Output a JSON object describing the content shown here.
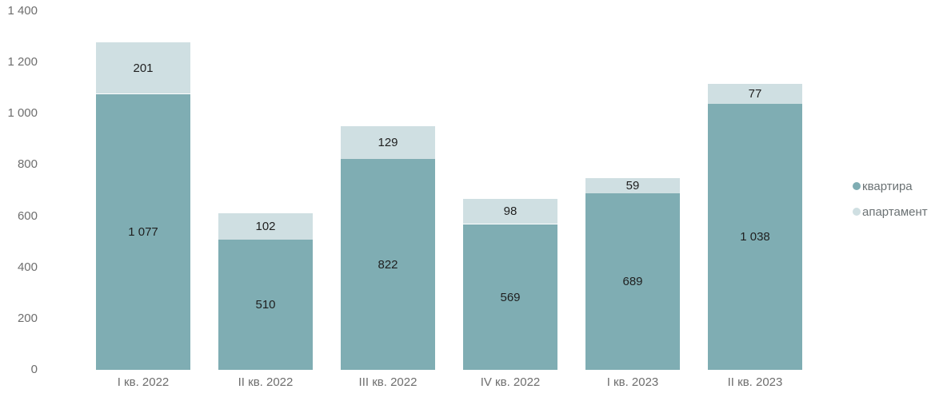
{
  "chart_data": {
    "type": "bar",
    "stacked": true,
    "categories": [
      "I кв. 2022",
      "II кв. 2022",
      "III кв. 2022",
      "IV кв. 2022",
      "I кв. 2023",
      "II кв. 2023"
    ],
    "series": [
      {
        "name": "квартира",
        "color": "#7fadb3",
        "values": [
          1077,
          510,
          822,
          569,
          689,
          1038
        ]
      },
      {
        "name": "апартамент",
        "color": "#cfdfe2",
        "values": [
          201,
          102,
          129,
          98,
          59,
          77
        ]
      }
    ],
    "ylim": [
      0,
      1400
    ],
    "y_ticks": [
      0,
      200,
      400,
      600,
      800,
      1000,
      1200,
      1400
    ],
    "grid": false,
    "legend_position": "right",
    "number_format": "space-thousands"
  },
  "colors": {
    "background": "#ffffff",
    "axis_text": "#6e6e6e",
    "bar_label_text": "#1f1f1f",
    "legend_text": "#6b7274"
  }
}
